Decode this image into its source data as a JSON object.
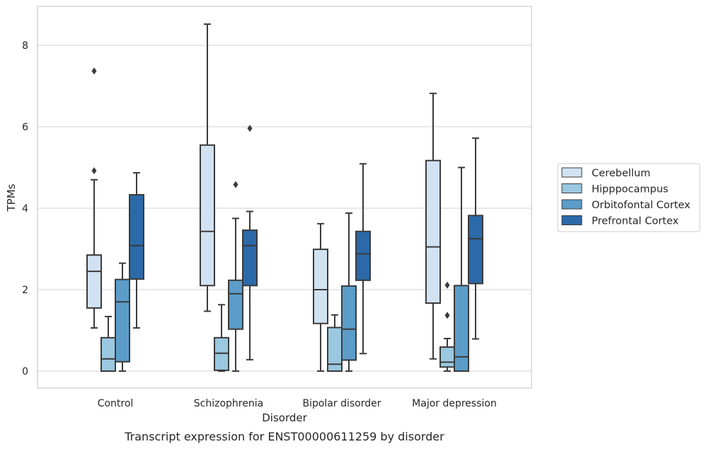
{
  "chart_data": {
    "type": "box",
    "xlabel": "Disorder",
    "ylabel": "TPMs",
    "caption": "Transcript expression for ENST00000611259 by disorder",
    "ylim": [
      -0.4,
      9.0
    ],
    "yticks": [
      "0",
      "2",
      "4",
      "6",
      "8"
    ],
    "grid": true,
    "legend_position": "right",
    "categories": [
      "Control",
      "Schizophrenia",
      "Bipolar disorder",
      "Major depression"
    ],
    "series": [
      {
        "name": "Cerebellum",
        "color": "#d1e2f2",
        "boxes": [
          {
            "whisker_low": 1.06,
            "q1": 1.55,
            "median": 2.45,
            "q3": 2.85,
            "whisker_high": 4.7,
            "outliers": [
              4.92,
              7.37
            ]
          },
          {
            "whisker_low": 1.47,
            "q1": 2.1,
            "median": 3.43,
            "q3": 5.55,
            "whisker_high": 8.52,
            "outliers": []
          },
          {
            "whisker_low": 0.0,
            "q1": 1.17,
            "median": 2.0,
            "q3": 2.99,
            "whisker_high": 3.62,
            "outliers": []
          },
          {
            "whisker_low": 0.3,
            "q1": 1.67,
            "median": 3.05,
            "q3": 5.17,
            "whisker_high": 6.82,
            "outliers": []
          }
        ]
      },
      {
        "name": "Hipppocampus",
        "color": "#9ac8e0",
        "boxes": [
          {
            "whisker_low": 0.0,
            "q1": 0.0,
            "median": 0.3,
            "q3": 0.82,
            "whisker_high": 1.34,
            "outliers": []
          },
          {
            "whisker_low": 0.0,
            "q1": 0.02,
            "median": 0.44,
            "q3": 0.82,
            "whisker_high": 1.63,
            "outliers": []
          },
          {
            "whisker_low": 0.0,
            "q1": 0.0,
            "median": 0.17,
            "q3": 1.07,
            "whisker_high": 1.38,
            "outliers": []
          },
          {
            "whisker_low": 0.0,
            "q1": 0.1,
            "median": 0.22,
            "q3": 0.59,
            "whisker_high": 0.8,
            "outliers": [
              1.37,
              2.11
            ]
          }
        ]
      },
      {
        "name": "Orbitofontal Cortex",
        "color": "#5b9cc9",
        "boxes": [
          {
            "whisker_low": 0.0,
            "q1": 0.23,
            "median": 1.7,
            "q3": 2.25,
            "whisker_high": 2.65,
            "outliers": []
          },
          {
            "whisker_low": 0.0,
            "q1": 1.03,
            "median": 1.9,
            "q3": 2.23,
            "whisker_high": 3.75,
            "outliers": [
              4.58
            ]
          },
          {
            "whisker_low": 0.0,
            "q1": 0.27,
            "median": 1.03,
            "q3": 2.09,
            "whisker_high": 3.88,
            "outliers": []
          },
          {
            "whisker_low": 0.0,
            "q1": 0.0,
            "median": 0.35,
            "q3": 2.1,
            "whisker_high": 5.0,
            "outliers": []
          }
        ]
      },
      {
        "name": "Prefrontal Cortex",
        "color": "#2b69a8",
        "boxes": [
          {
            "whisker_low": 1.06,
            "q1": 2.26,
            "median": 3.08,
            "q3": 4.33,
            "whisker_high": 4.87,
            "outliers": []
          },
          {
            "whisker_low": 0.28,
            "q1": 2.1,
            "median": 3.08,
            "q3": 3.46,
            "whisker_high": 3.92,
            "outliers": [
              5.96
            ]
          },
          {
            "whisker_low": 0.43,
            "q1": 2.23,
            "median": 2.88,
            "q3": 3.43,
            "whisker_high": 5.09,
            "outliers": []
          },
          {
            "whisker_low": 0.79,
            "q1": 2.15,
            "median": 3.25,
            "q3": 3.82,
            "whisker_high": 5.72,
            "outliers": []
          }
        ]
      }
    ]
  }
}
